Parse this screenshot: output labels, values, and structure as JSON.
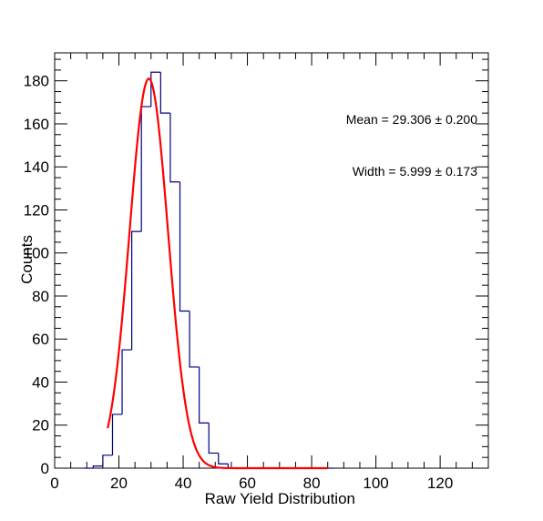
{
  "chart_data": {
    "type": "histogram",
    "xlabel": "Raw Yield Distribution",
    "ylabel": "Counts",
    "xlim": [
      0,
      135
    ],
    "ylim": [
      0,
      193
    ],
    "x_ticks": [
      "0",
      "20",
      "40",
      "60",
      "80",
      "100",
      "120"
    ],
    "y_ticks": [
      "0",
      "20",
      "40",
      "60",
      "80",
      "100",
      "120",
      "140",
      "160",
      "180"
    ],
    "grid": false,
    "histogram": {
      "color": "#000080",
      "bin_width": 3,
      "bin_edges_start": 9,
      "counts": [
        0,
        1,
        6,
        25,
        55,
        110,
        168,
        184,
        165,
        133,
        73,
        47,
        21,
        7,
        2,
        0,
        0,
        0,
        0,
        0,
        0,
        0,
        0,
        0,
        0,
        0
      ]
    },
    "fit": {
      "color": "#ff0000",
      "type": "gaussian",
      "amplitude": 181,
      "mean": 29.306,
      "sigma": 5.999,
      "x_range": [
        16.5,
        85.0
      ]
    },
    "annotations": [
      {
        "text": "Mean = 29.306 ± 0.200"
      },
      {
        "text": "Width = 5.999 ± 0.173"
      }
    ]
  }
}
